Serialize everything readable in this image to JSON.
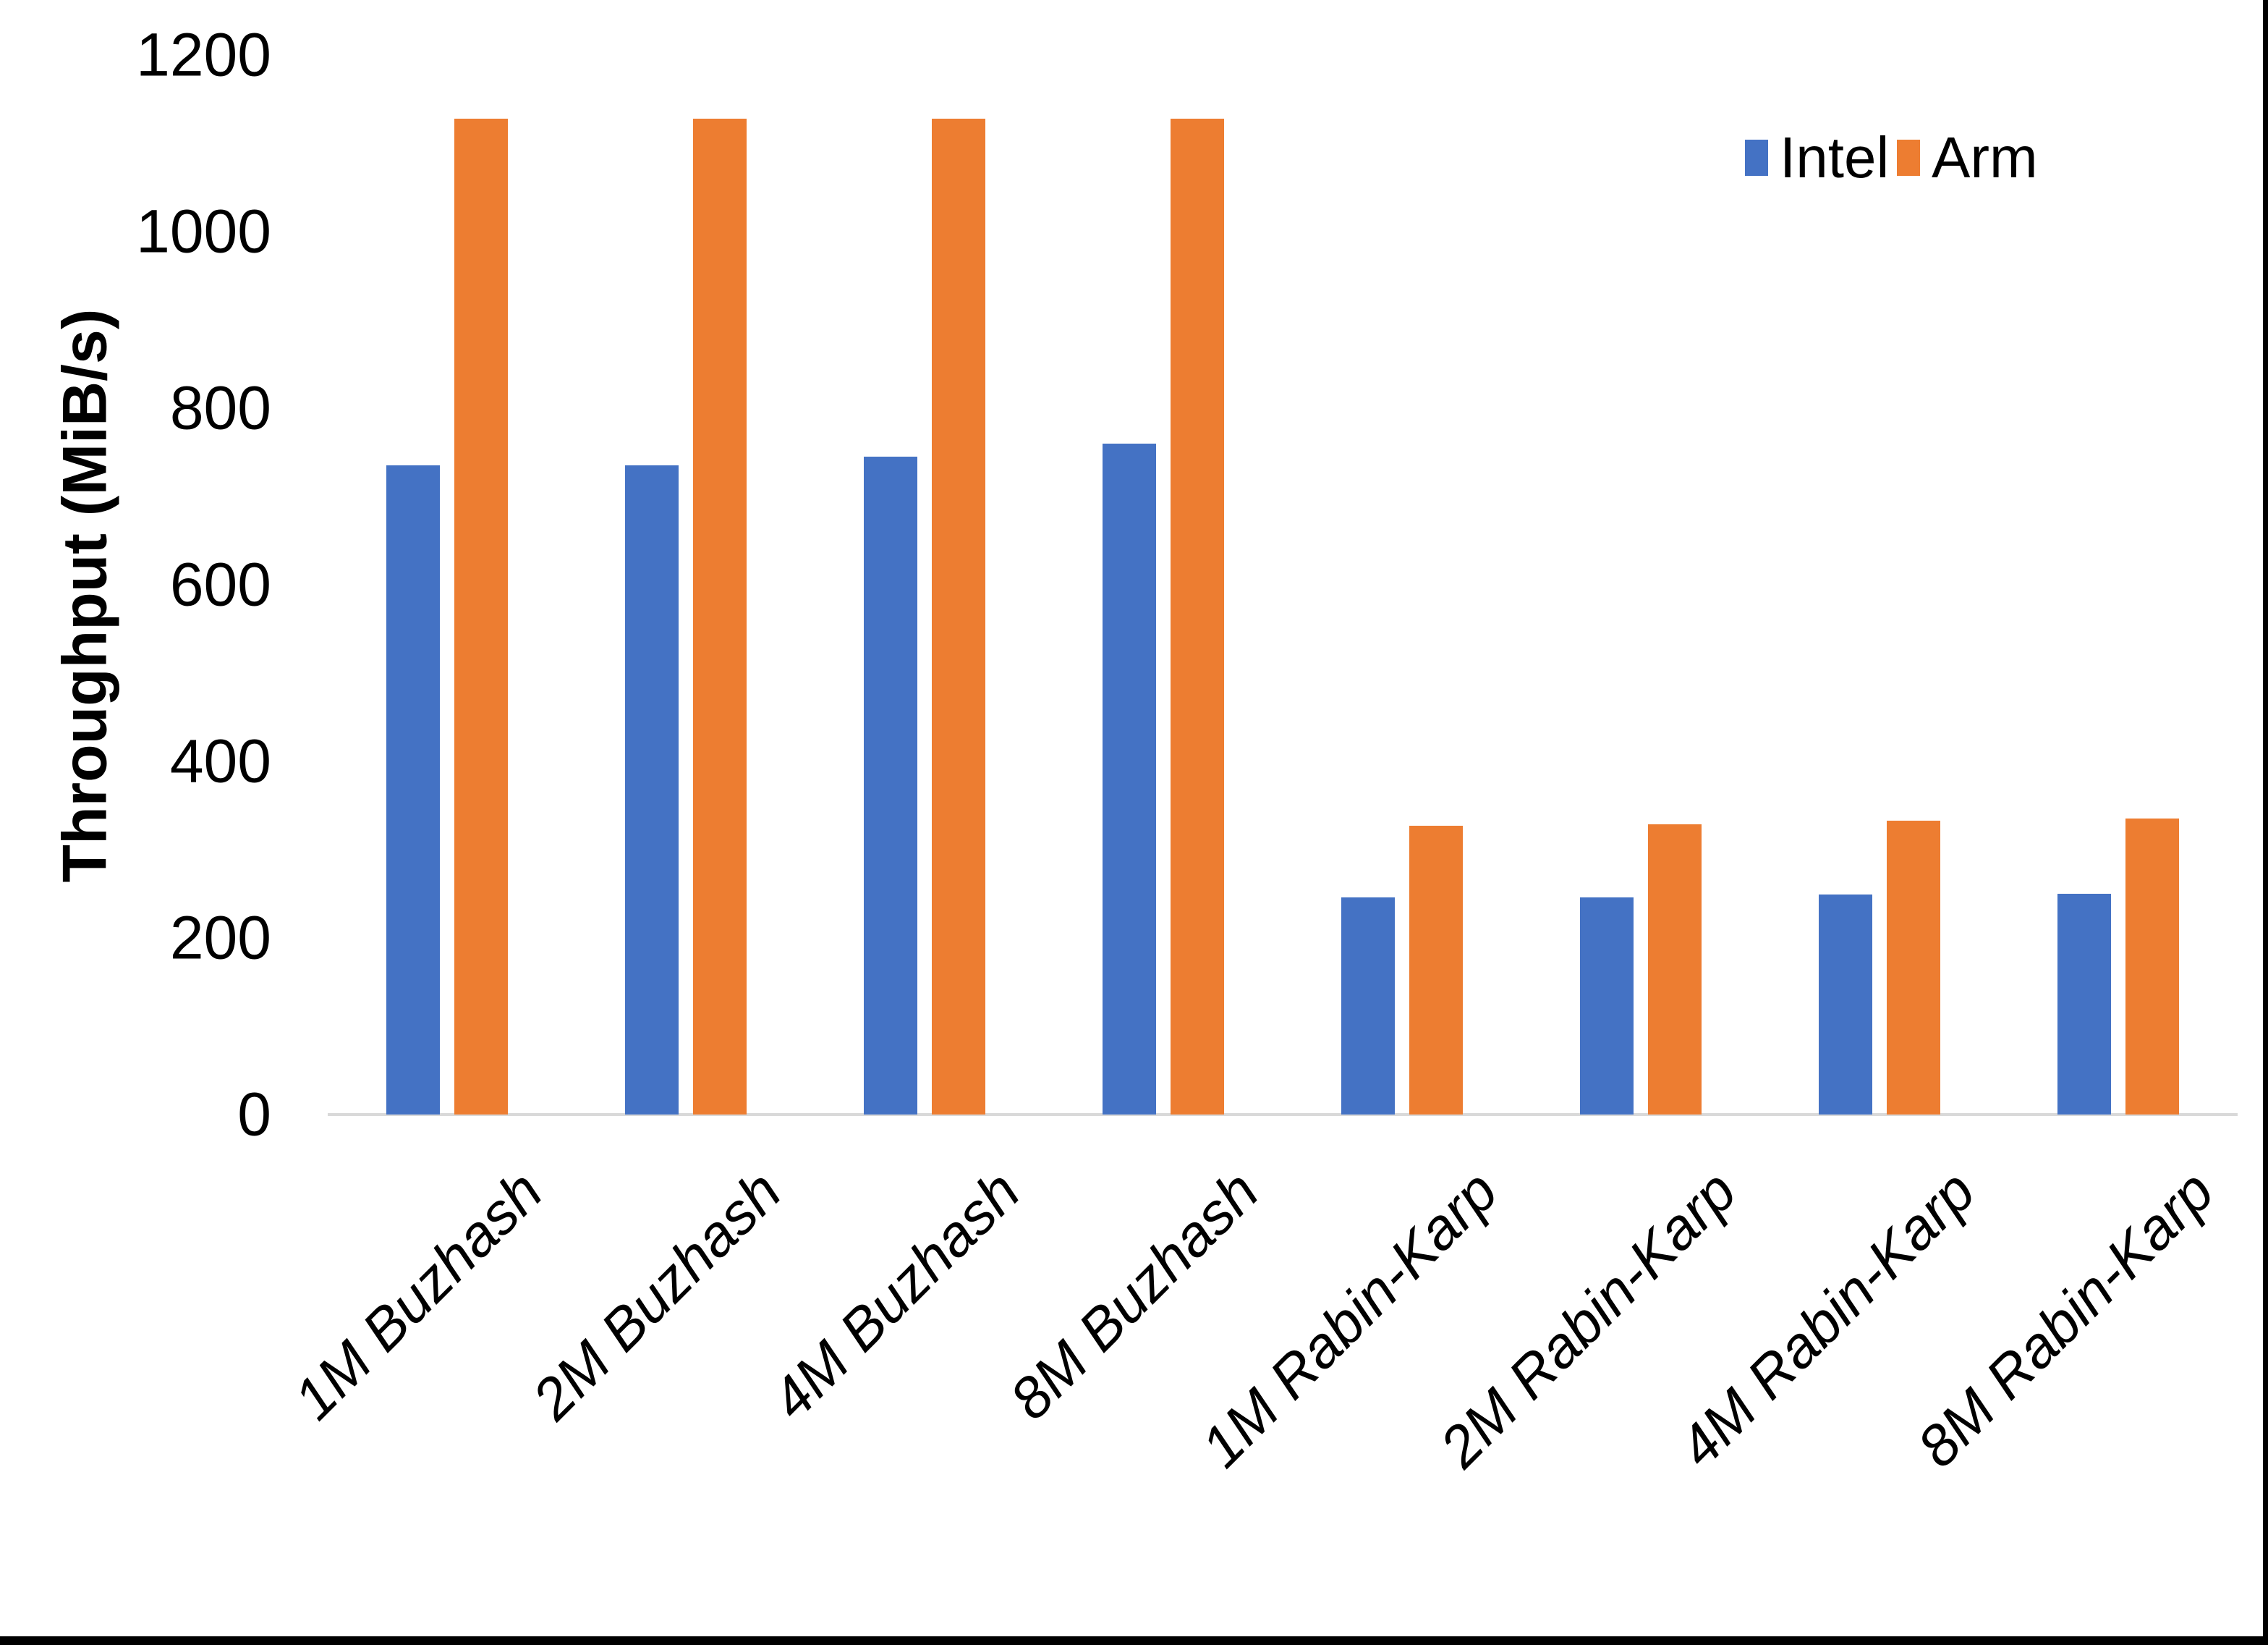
{
  "chart_data": {
    "type": "bar",
    "title": "",
    "xlabel": "",
    "ylabel": "Throughput (MiB/s)",
    "ylim": [
      0,
      1200
    ],
    "ytick_interval": 200,
    "yticks": [
      0,
      200,
      400,
      600,
      800,
      1000,
      1200
    ],
    "categories": [
      "1M Buzhash",
      "2M Buzhash",
      "4M Buzhash",
      "8M Buzhash",
      "1M Rabin-Karp",
      "2M Rabin-Karp",
      "4M Rabin-Karp",
      "8M Rabin-Karp"
    ],
    "series": [
      {
        "name": "Intel",
        "color": "#4472C4",
        "values": [
          735,
          735,
          745,
          760,
          246,
          246,
          249,
          250
        ]
      },
      {
        "name": "Arm",
        "color": "#ED7D31",
        "values": [
          1128,
          1128,
          1128,
          1128,
          327,
          329,
          333,
          335
        ]
      }
    ],
    "legend_position": "top-right",
    "grid": false
  },
  "legend": {
    "items": [
      {
        "label": "Intel",
        "color": "#4472C4"
      },
      {
        "label": "Arm",
        "color": "#ED7D31"
      }
    ]
  },
  "colors": {
    "intel_bar": "#4472C4",
    "arm_bar": "#ED7D31",
    "axis_line": "#D9D9D9",
    "text": "#000000",
    "background": "#FFFFFF",
    "screenshot_border": "#000000"
  }
}
